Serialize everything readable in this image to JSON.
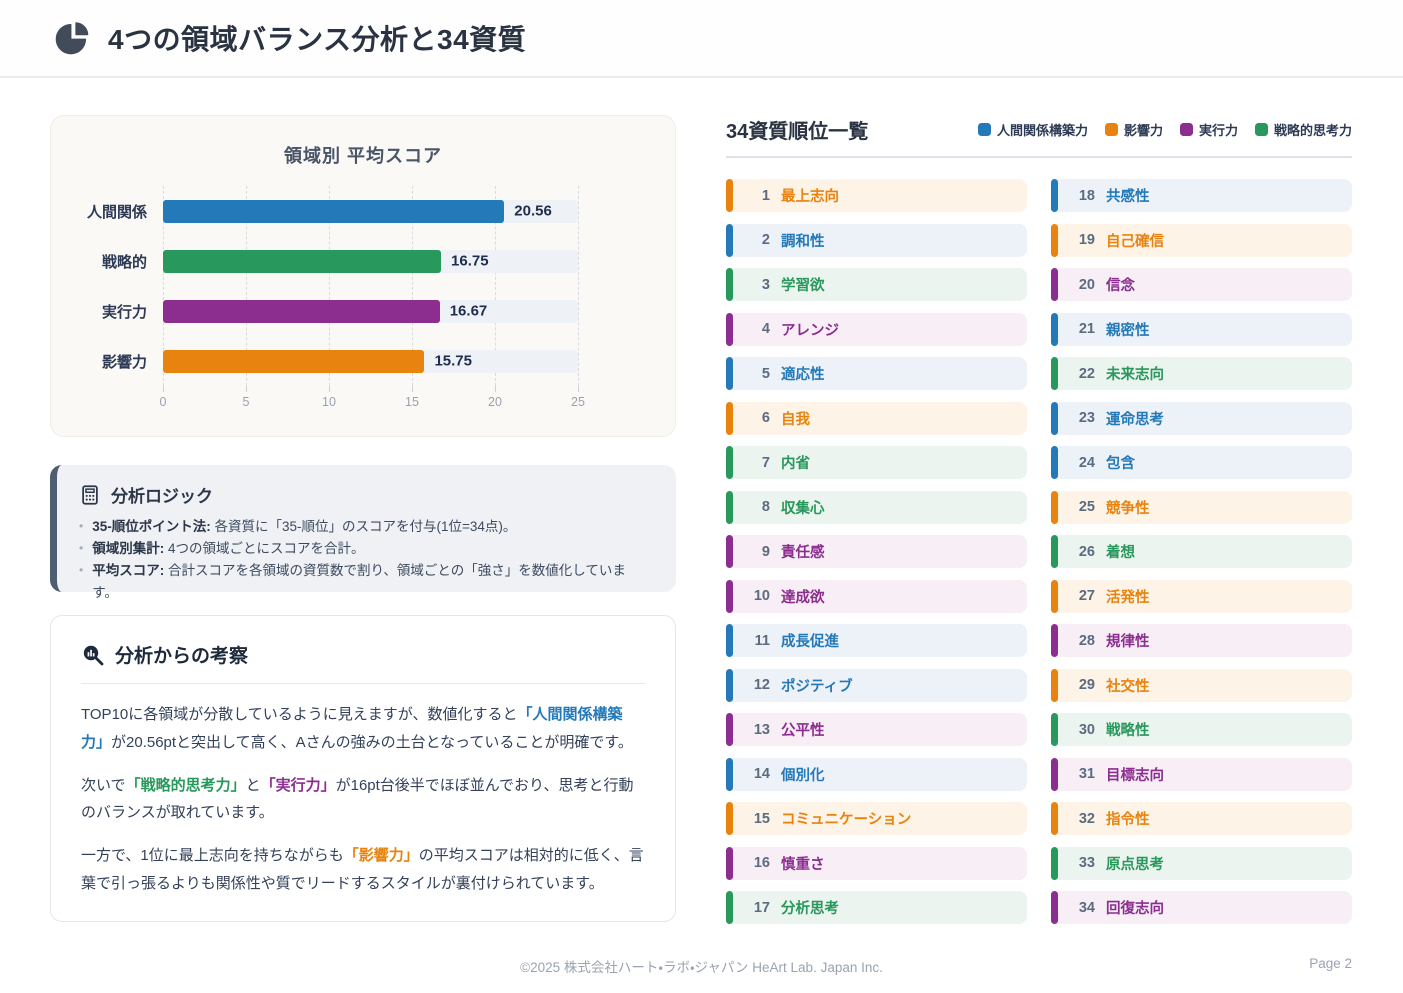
{
  "header": {
    "title": "4つの領域バランス分析と34資質"
  },
  "colors": {
    "relationship": "#2479b8",
    "influence": "#e8830f",
    "execution": "#8c2e90",
    "strategic": "#28985c"
  },
  "tints": {
    "relationship": "#edf2f9",
    "influence": "#fdf3e6",
    "execution": "#f7eef6",
    "strategic": "#ecf4ef"
  },
  "chart_data": {
    "type": "bar",
    "orientation": "horizontal",
    "title": "領域別 平均スコア",
    "xlabel": "",
    "ylabel": "",
    "categories": [
      "人間関係",
      "戦略的",
      "実行力",
      "影響力"
    ],
    "values": [
      20.56,
      16.75,
      16.67,
      15.75
    ],
    "value_labels": [
      "20.56",
      "16.75",
      "16.67",
      "15.75"
    ],
    "category_keys": [
      "relationship",
      "strategic",
      "execution",
      "influence"
    ],
    "xlim": [
      0,
      25
    ],
    "xticks": [
      0,
      5,
      10,
      15,
      20,
      25
    ],
    "grid": "dashed-vertical",
    "legend_position": "none"
  },
  "logic_box": {
    "title": "分析ロジック",
    "icon": "calculator-icon",
    "bullets": [
      {
        "label": "35-順位ポイント法:",
        "text": "各資質に「35-順位」のスコアを付与(1位=34点)。"
      },
      {
        "label": "領域別集計:",
        "text": "4つの領域ごとにスコアを合計。"
      },
      {
        "label": "平均スコア:",
        "text": "合計スコアを各領域の資質数で割り、領域ごとの「強さ」を数値化しています。"
      }
    ]
  },
  "insight_box": {
    "title": "分析からの考察",
    "icon": "magnifier-chart-icon",
    "paragraphs": [
      [
        {
          "t": "TOP10に各領域が分散しているように見えますが、数値化すると"
        },
        {
          "t": "「人間関係構築力」",
          "c": "relationship"
        },
        {
          "t": "が20.56ptと突出して高く、Aさんの強みの土台となっていることが明確です。"
        }
      ],
      [
        {
          "t": "次いで"
        },
        {
          "t": "「戦略的思考力」",
          "c": "strategic"
        },
        {
          "t": "と"
        },
        {
          "t": "「実行力」",
          "c": "execution"
        },
        {
          "t": "が16pt台後半でほぼ並んでおり、思考と行動のバランスが取れています。"
        }
      ],
      [
        {
          "t": "一方で、1位に最上志向を持ちながらも"
        },
        {
          "t": "「影響力」",
          "c": "influence"
        },
        {
          "t": "の平均スコアは相対的に低く、言葉で引っ張るよりも関係性や質でリードするスタイルが裏付けられています。"
        }
      ]
    ]
  },
  "ranking": {
    "title": "34資質順位一覧",
    "legend": [
      {
        "label": "人間関係構築力",
        "cat": "relationship"
      },
      {
        "label": "影響力",
        "cat": "influence"
      },
      {
        "label": "実行力",
        "cat": "execution"
      },
      {
        "label": "戦略的思考力",
        "cat": "strategic"
      }
    ],
    "items": [
      {
        "rank": 1,
        "name": "最上志向",
        "cat": "influence"
      },
      {
        "rank": 2,
        "name": "調和性",
        "cat": "relationship"
      },
      {
        "rank": 3,
        "name": "学習欲",
        "cat": "strategic"
      },
      {
        "rank": 4,
        "name": "アレンジ",
        "cat": "execution"
      },
      {
        "rank": 5,
        "name": "適応性",
        "cat": "relationship"
      },
      {
        "rank": 6,
        "name": "自我",
        "cat": "influence"
      },
      {
        "rank": 7,
        "name": "内省",
        "cat": "strategic"
      },
      {
        "rank": 8,
        "name": "収集心",
        "cat": "strategic"
      },
      {
        "rank": 9,
        "name": "責任感",
        "cat": "execution"
      },
      {
        "rank": 10,
        "name": "達成欲",
        "cat": "execution"
      },
      {
        "rank": 11,
        "name": "成長促進",
        "cat": "relationship"
      },
      {
        "rank": 12,
        "name": "ポジティブ",
        "cat": "relationship"
      },
      {
        "rank": 13,
        "name": "公平性",
        "cat": "execution"
      },
      {
        "rank": 14,
        "name": "個別化",
        "cat": "relationship"
      },
      {
        "rank": 15,
        "name": "コミュニケーション",
        "cat": "influence"
      },
      {
        "rank": 16,
        "name": "慎重さ",
        "cat": "execution"
      },
      {
        "rank": 17,
        "name": "分析思考",
        "cat": "strategic"
      },
      {
        "rank": 18,
        "name": "共感性",
        "cat": "relationship"
      },
      {
        "rank": 19,
        "name": "自己確信",
        "cat": "influence"
      },
      {
        "rank": 20,
        "name": "信念",
        "cat": "execution"
      },
      {
        "rank": 21,
        "name": "親密性",
        "cat": "relationship"
      },
      {
        "rank": 22,
        "name": "未来志向",
        "cat": "strategic"
      },
      {
        "rank": 23,
        "name": "運命思考",
        "cat": "relationship"
      },
      {
        "rank": 24,
        "name": "包含",
        "cat": "relationship"
      },
      {
        "rank": 25,
        "name": "競争性",
        "cat": "influence"
      },
      {
        "rank": 26,
        "name": "着想",
        "cat": "strategic"
      },
      {
        "rank": 27,
        "name": "活発性",
        "cat": "influence"
      },
      {
        "rank": 28,
        "name": "規律性",
        "cat": "execution"
      },
      {
        "rank": 29,
        "name": "社交性",
        "cat": "influence"
      },
      {
        "rank": 30,
        "name": "戦略性",
        "cat": "strategic"
      },
      {
        "rank": 31,
        "name": "目標志向",
        "cat": "execution"
      },
      {
        "rank": 32,
        "name": "指令性",
        "cat": "influence"
      },
      {
        "rank": 33,
        "name": "原点思考",
        "cat": "strategic"
      },
      {
        "rank": 34,
        "name": "回復志向",
        "cat": "execution"
      }
    ]
  },
  "footer": {
    "copyright": "©2025 株式会社ハート・ラボ・ジャパン HeArt Lab. Japan Inc.",
    "page": "Page 2"
  }
}
